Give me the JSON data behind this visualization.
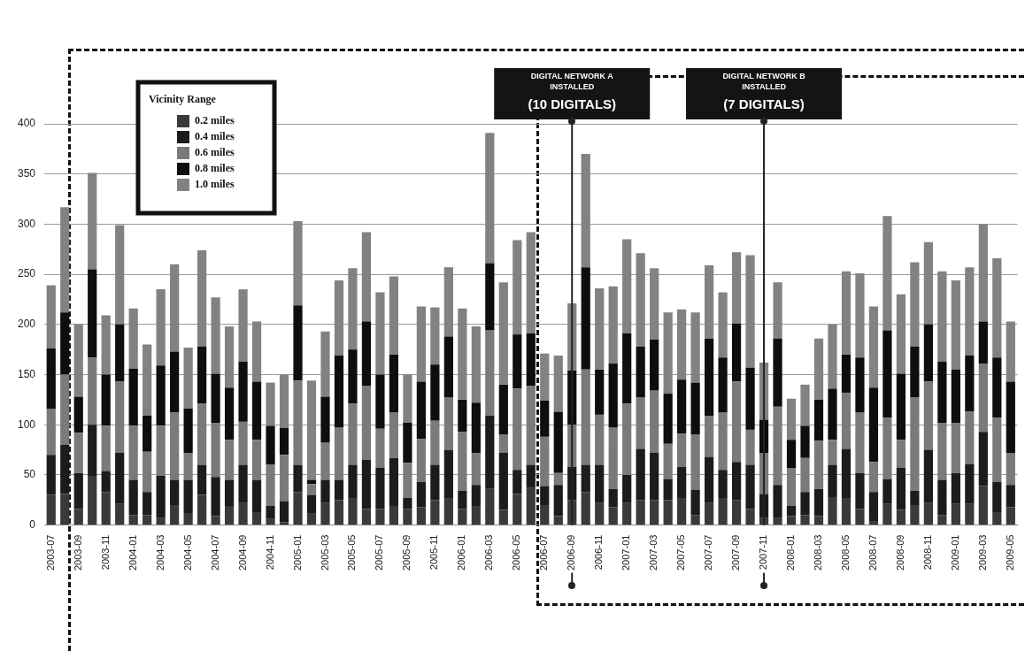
{
  "chart_data": {
    "type": "bar",
    "stacked": true,
    "categories": [
      "2003-07",
      null,
      "2003-09",
      null,
      "2003-11",
      null,
      "2004-01",
      null,
      "2004-03",
      null,
      "2004-05",
      null,
      "2004-07",
      null,
      "2004-09",
      null,
      "2004-11",
      null,
      "2005-01",
      null,
      "2005-03",
      null,
      "2005-05",
      null,
      "2005-07",
      null,
      "2005-09",
      null,
      "2005-11",
      null,
      "2006-01",
      null,
      "2006-03",
      null,
      "2006-05",
      null,
      "2006-07",
      null,
      "2006-09",
      null,
      "2006-11",
      null,
      "2007-01",
      null,
      "2007-03",
      null,
      "2007-05",
      null,
      "2007-07",
      null,
      "2007-09",
      null,
      "2007-11",
      null,
      "2008-01",
      null,
      "2008-03",
      null,
      "2008-05",
      null,
      "2008-07",
      null,
      "2008-09",
      null,
      "2008-11",
      null,
      "2009-01",
      null,
      "2009-03",
      null,
      "2009-05"
    ],
    "series": [
      {
        "name": "0.2 miles",
        "color": "#3a3a3a",
        "values": [
          30,
          31,
          16,
          49,
          33,
          21,
          10,
          10,
          7,
          20,
          12,
          30,
          9,
          19,
          22,
          13,
          6,
          3,
          33,
          12,
          22,
          25,
          27,
          16,
          16,
          19,
          16,
          18,
          25,
          27,
          16,
          19,
          36,
          15,
          31,
          37,
          20,
          9,
          25,
          33,
          22,
          18,
          22,
          25,
          25,
          25,
          27,
          10,
          22,
          27,
          25,
          16,
          7,
          7,
          9,
          10,
          9,
          28,
          27,
          16,
          4,
          21,
          15,
          20,
          22,
          10,
          21,
          21,
          39,
          13,
          18
        ]
      },
      {
        "name": "0.4 miles",
        "color": "#1c1c1c",
        "values": [
          40,
          49,
          36,
          51,
          21,
          51,
          35,
          23,
          42,
          25,
          33,
          30,
          39,
          26,
          38,
          32,
          13,
          21,
          27,
          18,
          23,
          20,
          33,
          49,
          41,
          48,
          11,
          25,
          35,
          48,
          18,
          21,
          73,
          57,
          24,
          23,
          19,
          31,
          33,
          27,
          38,
          18,
          28,
          51,
          47,
          21,
          31,
          25,
          46,
          28,
          38,
          44,
          24,
          33,
          10,
          23,
          27,
          32,
          49,
          36,
          29,
          25,
          42,
          14,
          53,
          35,
          31,
          40,
          54,
          30,
          22
        ]
      },
      {
        "name": "0.6 miles",
        "color": "#7a7a7a",
        "values": [
          46,
          70,
          40,
          67,
          45,
          71,
          54,
          40,
          50,
          67,
          27,
          61,
          54,
          40,
          43,
          40,
          41,
          46,
          84,
          11,
          37,
          52,
          61,
          74,
          39,
          45,
          35,
          43,
          44,
          52,
          59,
          32,
          85,
          18,
          81,
          79,
          49,
          12,
          42,
          95,
          50,
          61,
          71,
          51,
          62,
          35,
          33,
          55,
          41,
          57,
          80,
          35,
          41,
          78,
          38,
          34,
          48,
          25,
          56,
          60,
          30,
          61,
          28,
          93,
          68,
          57,
          50,
          52,
          68,
          64,
          32
        ]
      },
      {
        "name": "0.8 miles",
        "color": "#0e0e0e",
        "values": [
          60,
          62,
          36,
          88,
          51,
          57,
          57,
          36,
          60,
          61,
          44,
          57,
          49,
          52,
          60,
          58,
          39,
          27,
          75,
          4,
          46,
          72,
          54,
          64,
          54,
          58,
          40,
          57,
          56,
          61,
          32,
          50,
          67,
          50,
          54,
          52,
          36,
          61,
          54,
          102,
          45,
          64,
          70,
          51,
          51,
          50,
          54,
          52,
          77,
          55,
          58,
          62,
          33,
          68,
          28,
          32,
          41,
          51,
          38,
          55,
          74,
          87,
          66,
          51,
          57,
          61,
          53,
          56,
          42,
          60,
          71
        ]
      },
      {
        "name": "1.0 miles",
        "color": "#828282",
        "values": [
          63,
          105,
          72,
          96,
          59,
          99,
          60,
          71,
          76,
          87,
          61,
          96,
          76,
          61,
          72,
          60,
          43,
          53,
          84,
          99,
          65,
          75,
          81,
          89,
          82,
          78,
          48,
          75,
          57,
          69,
          91,
          76,
          130,
          102,
          94,
          101,
          47,
          56,
          67,
          113,
          81,
          77,
          94,
          93,
          71,
          81,
          70,
          70,
          73,
          65,
          71,
          112,
          57,
          56,
          41,
          41,
          61,
          64,
          83,
          84,
          81,
          114,
          79,
          84,
          82,
          90,
          89,
          88,
          97,
          99,
          60
        ]
      }
    ],
    "ylim": [
      0,
      400
    ],
    "yticks": [
      0,
      50,
      100,
      150,
      200,
      250,
      300,
      350,
      400
    ],
    "grid": "y",
    "legend": "top left",
    "legend_title": "Vicinity Range",
    "ref_lines": [
      {
        "axis": "x",
        "value": "2006-09",
        "label": "DIGITAL NETWORK A INSTALLED\n(10 DIGITALS)"
      },
      {
        "axis": "x",
        "value": "2007-11",
        "label": "DIGITAL NETWORK B INSTALLED\n(7 DIGITALS)"
      }
    ]
  }
}
